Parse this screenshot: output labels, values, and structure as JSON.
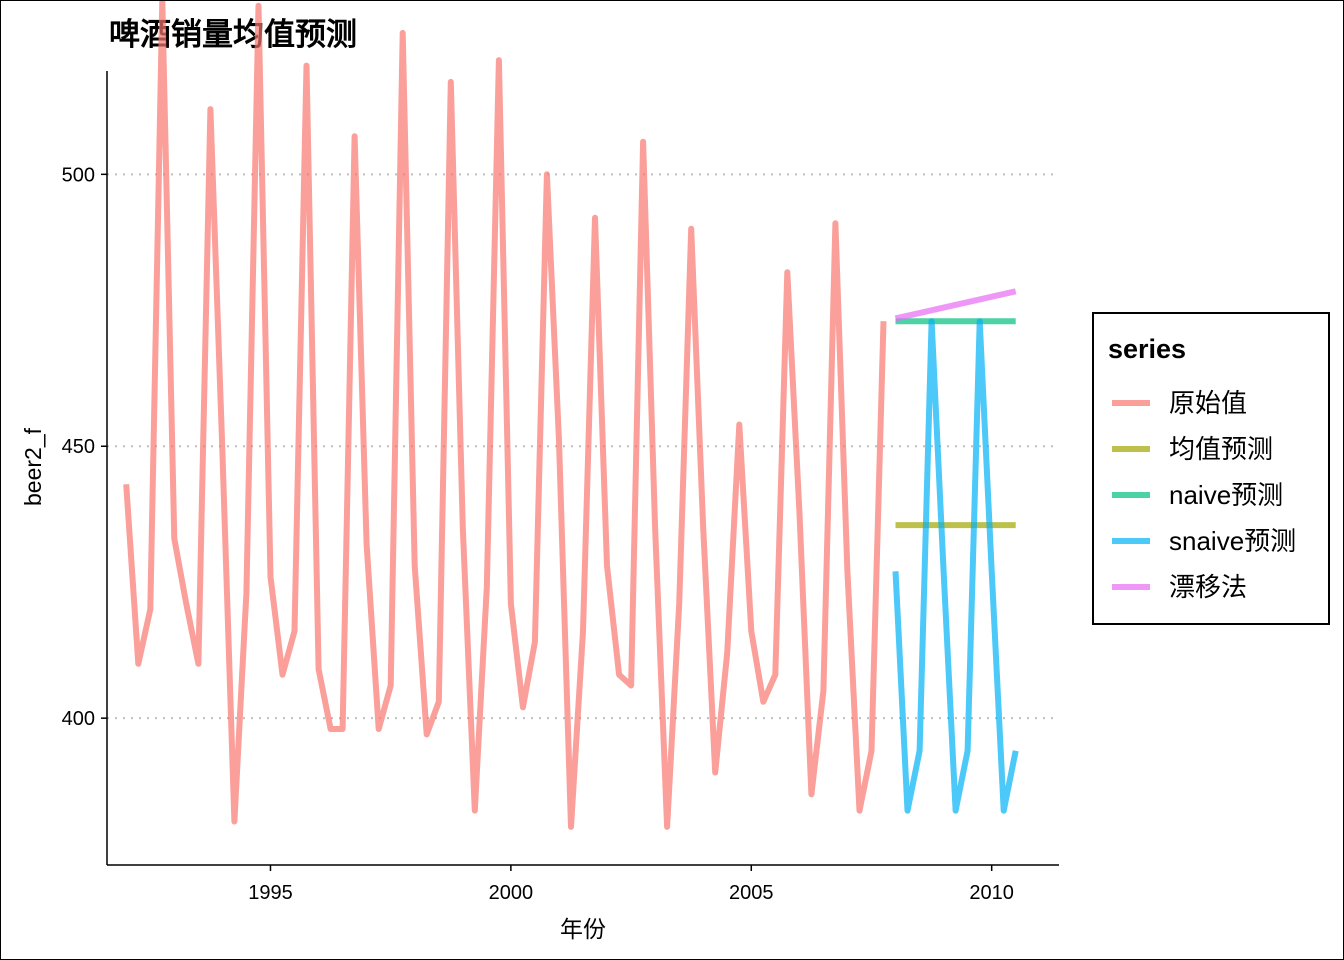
{
  "chart_data": {
    "type": "line",
    "title": "啤酒销量均值预测",
    "xlabel": "年份",
    "ylabel": "beer2_f",
    "xlim": [
      1991.6,
      2011.4
    ],
    "ylim": [
      373,
      519
    ],
    "x_ticks": [
      1995,
      2000,
      2005,
      2010
    ],
    "y_ticks": [
      400,
      450,
      500
    ],
    "grid": {
      "horizontal_major": true,
      "vertical": false,
      "style": "dotted"
    },
    "legend": {
      "title": "series",
      "position": "right"
    },
    "colors": {
      "原始值": "#F8766D",
      "均值预测": "#A3A500",
      "naive预测": "#00BF7D",
      "snaive预测": "#00B0F6",
      "漂移法": "#E76BF3"
    },
    "series": [
      {
        "name": "原始值",
        "x": [
          1992.0,
          1992.25,
          1992.5,
          1992.75,
          1993.0,
          1993.25,
          1993.5,
          1993.75,
          1994.0,
          1994.25,
          1994.5,
          1994.75,
          1995.0,
          1995.25,
          1995.5,
          1995.75,
          1996.0,
          1996.25,
          1996.5,
          1996.75,
          1997.0,
          1997.25,
          1997.5,
          1997.75,
          1998.0,
          1998.25,
          1998.5,
          1998.75,
          1999.0,
          1999.25,
          1999.5,
          1999.75,
          2000.0,
          2000.25,
          2000.5,
          2000.75,
          2001.0,
          2001.25,
          2001.5,
          2001.75,
          2002.0,
          2002.25,
          2002.5,
          2002.75,
          2003.0,
          2003.25,
          2003.5,
          2003.75,
          2004.0,
          2004.25,
          2004.5,
          2004.75,
          2005.0,
          2005.25,
          2005.5,
          2005.75,
          2006.0,
          2006.25,
          2006.5,
          2006.75,
          2007.0,
          2007.25,
          2007.5,
          2007.75
        ],
        "values": [
          443,
          410,
          420,
          532,
          433,
          421,
          410,
          512,
          449,
          381,
          423,
          531,
          426,
          408,
          416,
          520,
          409,
          398,
          398,
          507,
          432,
          398,
          406,
          526,
          428,
          397,
          403,
          517,
          435,
          383,
          424,
          521,
          421,
          402,
          414,
          500,
          451,
          380,
          416,
          492,
          428,
          408,
          406,
          506,
          435,
          380,
          421,
          490,
          435,
          390,
          412,
          454,
          416,
          403,
          408,
          482,
          438,
          386,
          405,
          491,
          427,
          383,
          394,
          473
        ]
      },
      {
        "name": "均值预测",
        "x": [
          2008.0,
          2010.5
        ],
        "values": [
          435.5,
          435.5
        ]
      },
      {
        "name": "naive预测",
        "x": [
          2008.0,
          2010.5
        ],
        "values": [
          473,
          473
        ]
      },
      {
        "name": "snaive预测",
        "x": [
          2008.0,
          2008.25,
          2008.5,
          2008.75,
          2009.0,
          2009.25,
          2009.5,
          2009.75,
          2010.0,
          2010.25,
          2010.5
        ],
        "values": [
          427,
          383,
          394,
          473,
          427,
          383,
          394,
          473,
          427,
          383,
          394
        ]
      },
      {
        "name": "漂移法",
        "x": [
          2008.0,
          2010.5
        ],
        "values": [
          473.5,
          478.5
        ]
      }
    ]
  }
}
